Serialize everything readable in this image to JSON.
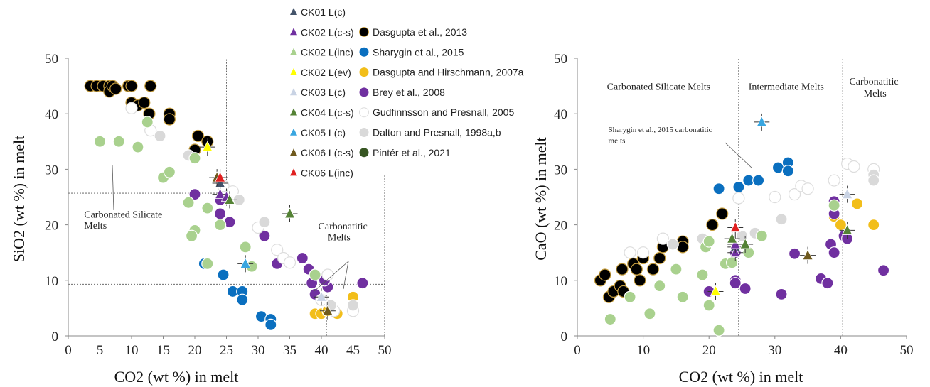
{
  "legend": {
    "triangles": [
      {
        "label": "CK01 L(c)",
        "color": "#44546a"
      },
      {
        "label": "CK02 L(c-s)",
        "color": "#7030a0"
      },
      {
        "label": "CK02 L(inc)",
        "color": "#a9d18e"
      },
      {
        "label": "CK02 L(ev)",
        "color": "#ffff00"
      },
      {
        "label": "CK03 L(c)",
        "color": "#c9d3e4"
      },
      {
        "label": "CK04 L(c-s)",
        "color": "#548235"
      },
      {
        "label": "CK05 L(c)",
        "color": "#39a6e0"
      },
      {
        "label": "CK06 L(c-s)",
        "color": "#6f5a1e"
      },
      {
        "label": "CK06 L(inc)",
        "color": "#e02020"
      }
    ],
    "circles": [
      {
        "label": "Dasgupta et al., 2013",
        "color": "#000000",
        "edge": "#c8a040"
      },
      {
        "label": "Sharygin et al., 2015",
        "color": "#0a6fbf",
        "edge": "#ffffff"
      },
      {
        "label": "Dasgupta and Hirschmann, 2007a",
        "color": "#f2be1a",
        "edge": "#ffffff"
      },
      {
        "label": "Brey et al., 2008",
        "color": "#7030a0",
        "edge": "#ffffff"
      },
      {
        "label": "Gudfinnsson and Presnall, 2005",
        "color": "#ffffff",
        "edge": "#dddddd"
      },
      {
        "label": "Dalton and Presnall, 1998a,b",
        "color": "#d9d9d9",
        "edge": "#ffffff"
      },
      {
        "label": "Pintér et al., 2021",
        "color": "#375623",
        "edge": "#ffffff"
      }
    ]
  },
  "chart_data": [
    {
      "type": "scatter",
      "title": "",
      "xlabel": "CO2 (wt %) in melt",
      "ylabel": "SiO2 (wt %) in melt",
      "xlim": [
        0,
        50
      ],
      "ylim": [
        0,
        50
      ],
      "xticks": [
        "0",
        "5",
        "10",
        "15",
        "20",
        "25",
        "30",
        "35",
        "40",
        "45",
        "50"
      ],
      "yticks": [
        "0",
        "10",
        "20",
        "30",
        "40",
        "50"
      ],
      "annotations": [
        {
          "text": "Carbonated Silicate",
          "x": 2.5,
          "y": 21.3
        },
        {
          "text": "Melts",
          "x": 2.5,
          "y": 19.3
        },
        {
          "text": "Carbonatitic",
          "x": 39.5,
          "y": 19.2
        },
        {
          "text": "Melts",
          "x": 41,
          "y": 17.2
        }
      ],
      "reference_lines": [
        {
          "orient": "v",
          "value": 25,
          "from": 25.5,
          "to": 50
        },
        {
          "orient": "h",
          "value": 25.7,
          "from": 0,
          "to": 25
        },
        {
          "orient": "h",
          "value": 9.3,
          "from": 0,
          "to": 50
        },
        {
          "orient": "v",
          "value": 40.8,
          "from": 0,
          "to": 9.3
        },
        {
          "orient": "v",
          "value": 50,
          "from": 0,
          "to": 29
        }
      ],
      "series": [
        {
          "name": "Dasgupta et al., 2013",
          "marker": "circle",
          "points": [
            [
              3.5,
              45
            ],
            [
              4.5,
              45
            ],
            [
              5.5,
              45
            ],
            [
              6.5,
              45
            ],
            [
              6.5,
              44
            ],
            [
              7,
              45
            ],
            [
              7.5,
              44.5
            ],
            [
              9.5,
              45
            ],
            [
              10,
              45
            ],
            [
              10,
              42
            ],
            [
              11,
              41.5
            ],
            [
              12,
              42
            ],
            [
              13,
              45
            ],
            [
              12.8,
              40
            ],
            [
              16,
              40
            ],
            [
              16,
              39
            ],
            [
              20.5,
              36
            ],
            [
              22,
              35
            ],
            [
              20,
              33.5
            ]
          ]
        },
        {
          "name": "Sharygin et al., 2015",
          "marker": "circle",
          "points": [
            [
              21.5,
              13
            ],
            [
              24.5,
              11
            ],
            [
              26,
              8
            ],
            [
              27.5,
              8
            ],
            [
              27.5,
              6.5
            ],
            [
              30.5,
              3.5
            ],
            [
              32,
              3
            ],
            [
              32,
              2
            ]
          ]
        },
        {
          "name": "Dasgupta and Hirschmann, 2007a",
          "marker": "circle",
          "points": [
            [
              39,
              4
            ],
            [
              40,
              4
            ],
            [
              41,
              4.5
            ],
            [
              42.5,
              4
            ],
            [
              45,
              7
            ]
          ]
        },
        {
          "name": "Brey et al., 2008",
          "marker": "circle",
          "points": [
            [
              20,
              25.5
            ],
            [
              24,
              24.5
            ],
            [
              24,
              22
            ],
            [
              25.5,
              20.5
            ],
            [
              31,
              18
            ],
            [
              33,
              13
            ],
            [
              37,
              14
            ],
            [
              38,
              12
            ],
            [
              39,
              11
            ],
            [
              38.5,
              9.5
            ],
            [
              39,
              7.5
            ],
            [
              41,
              8.8
            ],
            [
              40.5,
              10
            ],
            [
              46.5,
              9.5
            ]
          ]
        },
        {
          "name": "Gudfinnsson and Presnall, 2005",
          "marker": "circle",
          "points": [
            [
              10,
              41
            ],
            [
              13,
              37
            ],
            [
              24.5,
              27
            ],
            [
              26,
              26
            ],
            [
              30,
              19.5
            ],
            [
              33,
              15.5
            ],
            [
              34,
              14
            ],
            [
              35,
              13.2
            ],
            [
              41,
              11
            ],
            [
              40,
              6.5
            ],
            [
              42,
              4.5
            ],
            [
              45,
              4.5
            ]
          ]
        },
        {
          "name": "Dalton and Presnall, 1998a,b",
          "marker": "circle",
          "points": [
            [
              14.5,
              36
            ],
            [
              19,
              32.5
            ],
            [
              27,
              24.5
            ],
            [
              31,
              20.5
            ],
            [
              41.5,
              5.5
            ],
            [
              45,
              5.5
            ]
          ]
        },
        {
          "name": "CK02 L(inc)",
          "marker": "circle",
          "points": [
            [
              5,
              35
            ],
            [
              8,
              35
            ],
            [
              11,
              34
            ],
            [
              15,
              28.5
            ],
            [
              16,
              29.5
            ],
            [
              12.5,
              38.5
            ],
            [
              20,
              32
            ],
            [
              19,
              24
            ],
            [
              22,
              23
            ],
            [
              20,
              19
            ],
            [
              19.5,
              18
            ],
            [
              24,
              20
            ],
            [
              28,
              16
            ],
            [
              22,
              13
            ],
            [
              29,
              12.5
            ],
            [
              39,
              11
            ]
          ]
        }
      ],
      "triangles": [
        {
          "name": "CK01 L(c)",
          "points": [
            [
              24,
              27.5
            ]
          ]
        },
        {
          "name": "CK02 L(c-s)",
          "points": [
            [
              24,
              25.5
            ],
            [
              25,
              25
            ]
          ]
        },
        {
          "name": "CK02 L(ev)",
          "points": [
            [
              22,
              34
            ]
          ]
        },
        {
          "name": "CK03 L(c)",
          "points": [
            [
              40,
              7
            ]
          ]
        },
        {
          "name": "CK04 L(c-s)",
          "points": [
            [
              35,
              22
            ],
            [
              25.5,
              24.5
            ]
          ]
        },
        {
          "name": "CK05 L(c)",
          "points": [
            [
              28,
              13
            ]
          ]
        },
        {
          "name": "CK06 L(c-s)",
          "points": [
            [
              23.5,
              28.5
            ],
            [
              41,
              4.5
            ]
          ]
        },
        {
          "name": "CK06 L(inc)",
          "points": [
            [
              24,
              28.5
            ]
          ]
        }
      ]
    },
    {
      "type": "scatter",
      "title": "",
      "xlabel": "CO2 (wt %) in melt",
      "ylabel": "CaO (wt %) in melt",
      "xlim": [
        0,
        50
      ],
      "ylim": [
        0,
        50
      ],
      "xticks": [
        "0",
        "10",
        "20",
        "30",
        "40",
        "50"
      ],
      "yticks": [
        "0",
        "10",
        "20",
        "30",
        "40",
        "50"
      ],
      "annotations": [
        {
          "text": "Carbonated Silicate Melts",
          "x": 4.5,
          "y": 44.3
        },
        {
          "text": "Intermediate Melts",
          "x": 26,
          "y": 44.3
        },
        {
          "text": "Carbonatitic",
          "x": 41.3,
          "y": 45.3
        },
        {
          "text": "Melts",
          "x": 43.5,
          "y": 43.1
        },
        {
          "text": "Sharygin et al., 2015 carbonatitic",
          "x": 4.7,
          "y": 36.7
        },
        {
          "text": "melts",
          "x": 4.7,
          "y": 34.7
        }
      ],
      "reference_lines": [
        {
          "orient": "v",
          "value": 24.5,
          "from": 0,
          "to": 50
        },
        {
          "orient": "v",
          "value": 40.3,
          "from": 0,
          "to": 50
        }
      ],
      "series": [
        {
          "name": "Dasgupta et al., 2013",
          "marker": "circle",
          "points": [
            [
              3.5,
              10
            ],
            [
              4.2,
              11
            ],
            [
              4.8,
              7
            ],
            [
              5.5,
              8
            ],
            [
              6.5,
              9
            ],
            [
              6.8,
              12
            ],
            [
              7,
              8
            ],
            [
              8.5,
              13
            ],
            [
              9,
              12
            ],
            [
              9.5,
              10
            ],
            [
              10,
              14
            ],
            [
              11.5,
              12
            ],
            [
              12.5,
              14
            ],
            [
              13,
              16
            ],
            [
              16,
              17
            ],
            [
              16,
              16
            ],
            [
              20.5,
              20
            ],
            [
              22,
              22
            ]
          ]
        },
        {
          "name": "Sharygin et al., 2015",
          "marker": "circle",
          "points": [
            [
              21.5,
              26.5
            ],
            [
              24.5,
              26.8
            ],
            [
              26,
              28
            ],
            [
              27.5,
              28
            ],
            [
              30.5,
              30.3
            ],
            [
              32,
              31.2
            ],
            [
              32,
              29.7
            ]
          ]
        },
        {
          "name": "Dasgupta and Hirschmann, 2007a",
          "marker": "circle",
          "points": [
            [
              39,
              21.5
            ],
            [
              40,
              20
            ],
            [
              42.5,
              23.8
            ],
            [
              45,
              20
            ]
          ]
        },
        {
          "name": "Brey et al., 2008",
          "marker": "circle",
          "points": [
            [
              20,
              8
            ],
            [
              24,
              15
            ],
            [
              24,
              10
            ],
            [
              24,
              9.5
            ],
            [
              25.5,
              8.5
            ],
            [
              31,
              7.5
            ],
            [
              33,
              14.8
            ],
            [
              37,
              10.3
            ],
            [
              38,
              9.5
            ],
            [
              38.5,
              16.5
            ],
            [
              39,
              15
            ],
            [
              39,
              22
            ],
            [
              39,
              24.2
            ],
            [
              40.5,
              18
            ],
            [
              41,
              17.5
            ],
            [
              46.5,
              11.8
            ]
          ]
        },
        {
          "name": "Gudfinnsson and Presnall, 2005",
          "marker": "circle",
          "points": [
            [
              8,
              15
            ],
            [
              10,
              15
            ],
            [
              13,
              17.5
            ],
            [
              24.5,
              24.8
            ],
            [
              30,
              25
            ],
            [
              33,
              25.5
            ],
            [
              34,
              27
            ],
            [
              35,
              26.5
            ],
            [
              39,
              28
            ],
            [
              41,
              31
            ],
            [
              42,
              30.5
            ],
            [
              45,
              30
            ]
          ]
        },
        {
          "name": "Dalton and Presnall, 1998a,b",
          "marker": "circle",
          "points": [
            [
              14.5,
              16.5
            ],
            [
              19,
              17.5
            ],
            [
              25,
              18
            ],
            [
              27,
              18.5
            ],
            [
              31,
              21
            ],
            [
              45,
              29
            ],
            [
              45,
              28
            ]
          ]
        },
        {
          "name": "CK02 L(inc)",
          "marker": "circle",
          "points": [
            [
              5,
              3
            ],
            [
              8,
              7
            ],
            [
              11,
              4
            ],
            [
              12.5,
              9
            ],
            [
              15,
              12
            ],
            [
              16,
              7
            ],
            [
              19,
              11
            ],
            [
              19.5,
              16
            ],
            [
              20,
              5.5
            ],
            [
              20,
              17
            ],
            [
              21.5,
              1
            ],
            [
              22.5,
              13
            ],
            [
              23.5,
              13.2
            ],
            [
              26,
              15
            ],
            [
              28,
              18
            ],
            [
              39,
              23.5
            ]
          ]
        }
      ],
      "triangles": [
        {
          "name": "CK01 L(c)",
          "points": [
            [
              24,
              16
            ]
          ]
        },
        {
          "name": "CK02 L(c-s)",
          "points": [
            [
              24,
              15
            ],
            [
              24,
              16.5
            ]
          ]
        },
        {
          "name": "CK02 L(ev)",
          "points": [
            [
              21,
              8
            ]
          ]
        },
        {
          "name": "CK03 L(c)",
          "points": [
            [
              41,
              25.5
            ]
          ]
        },
        {
          "name": "CK04 L(c-s)",
          "points": [
            [
              23.5,
              17.5
            ],
            [
              25.5,
              16.5
            ],
            [
              41,
              19
            ]
          ]
        },
        {
          "name": "CK05 L(c)",
          "points": [
            [
              28,
              38.5
            ]
          ]
        },
        {
          "name": "CK06 L(c-s)",
          "points": [
            [
              35,
              14.5
            ]
          ]
        },
        {
          "name": "CK06 L(inc)",
          "points": [
            [
              24,
              19.5
            ]
          ]
        }
      ]
    }
  ]
}
